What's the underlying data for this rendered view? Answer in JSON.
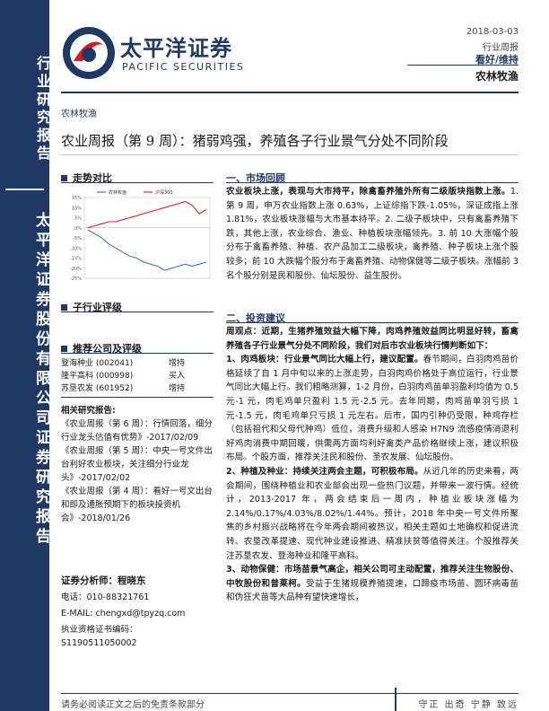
{
  "sidebar": {
    "top_text": "行业研究报告",
    "mid_text": "太平洋证券股份有限公司证券研究报告"
  },
  "logo": {
    "cn": "太平洋证券",
    "en": "PACIFIC SECURITIES"
  },
  "header": {
    "date": "2018-03-03",
    "report_type": "行业周报",
    "rating": "看好/维持",
    "industry": "农林牧渔"
  },
  "category": "农林牧渔",
  "title": "农业周报（第 9 周）：猪弱鸡强，养殖各子行业景气分处不同阶段",
  "left": {
    "trend_title": "走势对比",
    "sub_rating_title": "子行业评级",
    "rec_title": "推荐公司及评级",
    "companies": [
      {
        "name": "登海种业 (002041)",
        "rating": "增持"
      },
      {
        "name": "隆平高科 (000998)",
        "rating": "买入"
      },
      {
        "name": "苏垦农发 (601952)",
        "rating": "增持"
      }
    ],
    "related_title": "相关研究报告:",
    "related": [
      "《农业周报（第 6 周）：行情回落，细分行业龙头估值有优势》-2017/02/09",
      "《农业周报（第 5 周）：中央一号文件出台利好农业板块，关注细分行业龙头》-2017/02/02",
      "《农业周报（第 4 周）：看好一号文出台和即及通胀预期下的板块投资机会》-2018/01/26"
    ],
    "analyst_title": "证券分析师：程晓东",
    "phone": "电话：010-88321761",
    "email": "E-MAIL:    chengxd@tpyzq.com",
    "license": "执业资格证书编码：S1190511050002"
  },
  "chart_data": {
    "type": "line",
    "legend": [
      "农林牧渔",
      "沪深300"
    ],
    "yticks": [
      "15%",
      "10%",
      "5%",
      "0%",
      "-5%",
      "-10%",
      "-15%",
      "-20%",
      "-25%"
    ],
    "ylim": [
      -25,
      15
    ],
    "series": [
      {
        "name": "农林牧渔",
        "values": [
          -1,
          -3,
          -5,
          -8,
          -10,
          -12,
          -14,
          -15,
          -17,
          -18,
          -19,
          -21,
          -20,
          -19,
          -18,
          -19,
          -18,
          -17
        ]
      },
      {
        "name": "沪深300",
        "values": [
          0,
          1,
          2,
          3,
          3,
          4,
          5,
          6,
          7,
          8,
          9,
          10,
          11,
          12,
          13,
          11,
          7,
          9
        ]
      }
    ],
    "colors": [
      "#4472c4",
      "#ed1c24"
    ]
  },
  "right": {
    "s1_title": "一、市场回顾",
    "s1_p1_bold": "农业板块上涨，表现与大市持平，除禽畜养殖外所有二级版块指数上涨。",
    "s1_p1": "1. 第 9 周，申万农业指数上涨 0.63%，上证综指下跌-1.05%，深证成指上涨 1.81%，农业板块涨幅与大市基本持平。2. 二级子板块中，只有禽畜养殖下跌，其他上涨，农业综合、渔业、种植板块涨幅领先。3. 前 10 大涨幅个股分布于禽畜养殖、种植、农产品加工二级板块，禽养殖、种子板块上涨个股较多；前 10 大跌幅个股分布于禽畜养殖、动物保健等二级子板块。涨幅前 3 名个股分别是民和股份、仙坛股份、益生股份。",
    "s2_title": "二、投资建议",
    "s2_intro_lead": "周观点：近期，",
    "s2_intro_bold": "生猪养殖效益大幅下降，肉鸡养殖效益同比明显好转，畜禽养殖各子行业景气分处不同阶段，我们对后市农业板块行情判断如下：",
    "s2_p1_bold": "1、肉鸡板块：行业景气同比大幅上行，建议配置。",
    "s2_p1": "春节期间，白羽肉鸡苗价格延续了自 1 月中旬以来的上涨走势，白羽肉鸡价格处于高位运行，行业景气同比大幅上行。我们粗略测算，1-2 月份，白羽肉鸡苗单羽盈利均值为 0.5 元-1 元，肉毛鸡单只盈利 1.5 元-2.5 元。去年同期，肉鸡苗单羽亏损 1 元-1.5 元，肉毛鸡单只亏损 1 元左右。后市，国内引种仍受限，种鸡存栏（包括祖代和父母代种鸡）低位，消费升级和人感染 H7N9 流感疫情消退利好鸡肉消费中期回暖，供需两方面均利好禽类产品价格继续上涨，建议积极布局。个股方面，推荐关注民和股份、圣农发展、仙坛股份。",
    "s2_p2_bold": "2、种植及种业：持续关注两会主题，可积极布局。",
    "s2_p2": "从近几年的历史来看，两会期间，围绕种植业和农业部会出现一些热门议题，并带来一波行情。经统计，2013-2017 年，两会结束后一周内，种植业板块涨幅为 2.14%/0.17%/4.03%/8.02%/1.44%。预计，2018 年中央一号文件所聚焦的乡村振兴战略将在今年两会期间被热议，相关主题如土地确权和促进流转、农垦改革提速、现代种业建设推进、精准扶贫等值得关注。个股推荐关注苏垦农发、登海种业和隆平高科。",
    "s2_p3_bold": "3、动物保健：市场苗景气高企，相关公司可主动配置，推荐关注生物股份、中牧股份和普莱柯。",
    "s2_p3": "受益于生猪规模养殖提速，口蹄疫市场苗、圆环病毒苗和伪狂犬苗等大品种有望快速增长，"
  },
  "footer": {
    "disclaimer": "请务必阅读正文之后的免责条款部分",
    "motto": "守正  出奇  宁静  致远"
  }
}
